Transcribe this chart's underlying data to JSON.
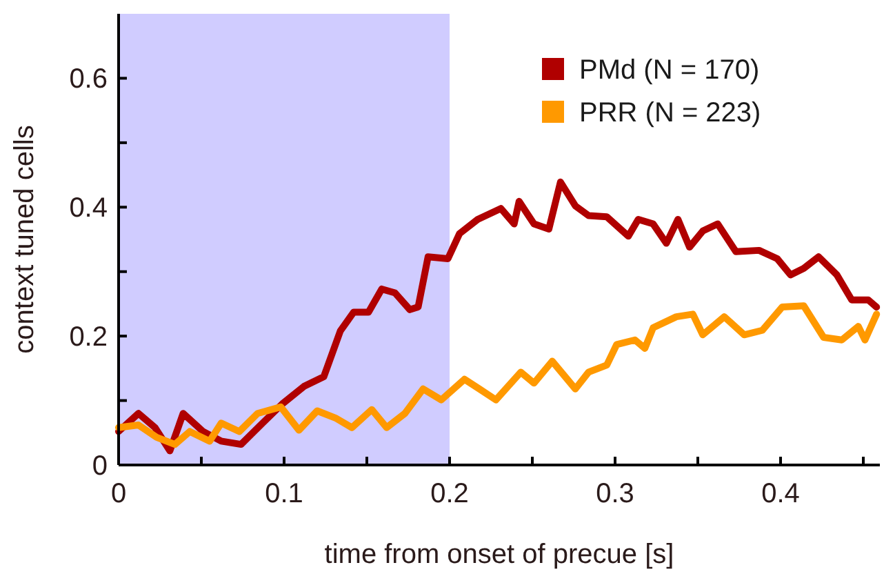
{
  "chart_data": {
    "type": "line",
    "xlabel": "time from onset of precue [s]",
    "ylabel": "context tuned cells",
    "xlim": [
      0,
      0.46
    ],
    "ylim": [
      0,
      0.7
    ],
    "xticks": [
      0,
      {
        "value": 0.05,
        "label": null
      },
      0.1,
      {
        "value": 0.15,
        "label": null
      },
      0.2,
      {
        "value": 0.25,
        "label": null
      },
      0.3,
      {
        "value": 0.35,
        "label": null
      },
      0.4,
      {
        "value": 0.45,
        "label": null
      }
    ],
    "yticks": [
      0,
      {
        "value": 0.1,
        "label": null
      },
      0.2,
      {
        "value": 0.3,
        "label": null
      },
      0.4,
      {
        "value": 0.5,
        "label": null
      },
      0.6
    ],
    "bands": [
      {
        "axis": "x",
        "from": 0,
        "to": 0.2,
        "color": "#d0ccff"
      }
    ],
    "legend": "top right",
    "grid": false,
    "marker": "none",
    "line_style": "solid",
    "series": [
      {
        "name": "PMd (N = 170)",
        "color": "#b00000",
        "x": [
          0,
          0.012,
          0.022,
          0.031,
          0.039,
          0.051,
          0.062,
          0.074,
          0.087,
          0.099,
          0.112,
          0.124,
          0.134,
          0.142,
          0.151,
          0.159,
          0.167,
          0.176,
          0.181,
          0.187,
          0.199,
          0.206,
          0.217,
          0.231,
          0.239,
          0.242,
          0.251,
          0.26,
          0.267,
          0.276,
          0.284,
          0.295,
          0.308,
          0.314,
          0.323,
          0.331,
          0.338,
          0.345,
          0.353,
          0.362,
          0.373,
          0.387,
          0.398,
          0.406,
          0.414,
          0.423,
          0.434,
          0.443,
          0.453,
          0.458
        ],
        "values": [
          0.052,
          0.08,
          0.058,
          0.022,
          0.08,
          0.052,
          0.037,
          0.032,
          0.065,
          0.095,
          0.122,
          0.137,
          0.208,
          0.237,
          0.237,
          0.273,
          0.267,
          0.241,
          0.245,
          0.323,
          0.32,
          0.359,
          0.381,
          0.398,
          0.374,
          0.409,
          0.374,
          0.366,
          0.439,
          0.402,
          0.387,
          0.385,
          0.355,
          0.381,
          0.374,
          0.344,
          0.381,
          0.338,
          0.363,
          0.374,
          0.331,
          0.333,
          0.32,
          0.295,
          0.305,
          0.323,
          0.295,
          0.256,
          0.256,
          0.245
        ]
      },
      {
        "name": "PRR (N = 223)",
        "color": "#ff9900",
        "x": [
          0,
          0.012,
          0.023,
          0.034,
          0.043,
          0.055,
          0.062,
          0.073,
          0.084,
          0.098,
          0.109,
          0.12,
          0.131,
          0.141,
          0.153,
          0.162,
          0.173,
          0.184,
          0.195,
          0.209,
          0.218,
          0.228,
          0.243,
          0.251,
          0.262,
          0.276,
          0.284,
          0.295,
          0.301,
          0.312,
          0.318,
          0.323,
          0.337,
          0.347,
          0.353,
          0.366,
          0.378,
          0.389,
          0.401,
          0.414,
          0.426,
          0.437,
          0.447,
          0.451,
          0.458
        ],
        "values": [
          0.058,
          0.062,
          0.043,
          0.032,
          0.052,
          0.037,
          0.065,
          0.052,
          0.08,
          0.09,
          0.054,
          0.084,
          0.073,
          0.058,
          0.086,
          0.058,
          0.08,
          0.118,
          0.101,
          0.133,
          0.118,
          0.101,
          0.144,
          0.127,
          0.161,
          0.118,
          0.144,
          0.155,
          0.187,
          0.194,
          0.181,
          0.213,
          0.23,
          0.234,
          0.202,
          0.23,
          0.202,
          0.209,
          0.245,
          0.247,
          0.198,
          0.194,
          0.215,
          0.194,
          0.234
        ]
      }
    ]
  }
}
